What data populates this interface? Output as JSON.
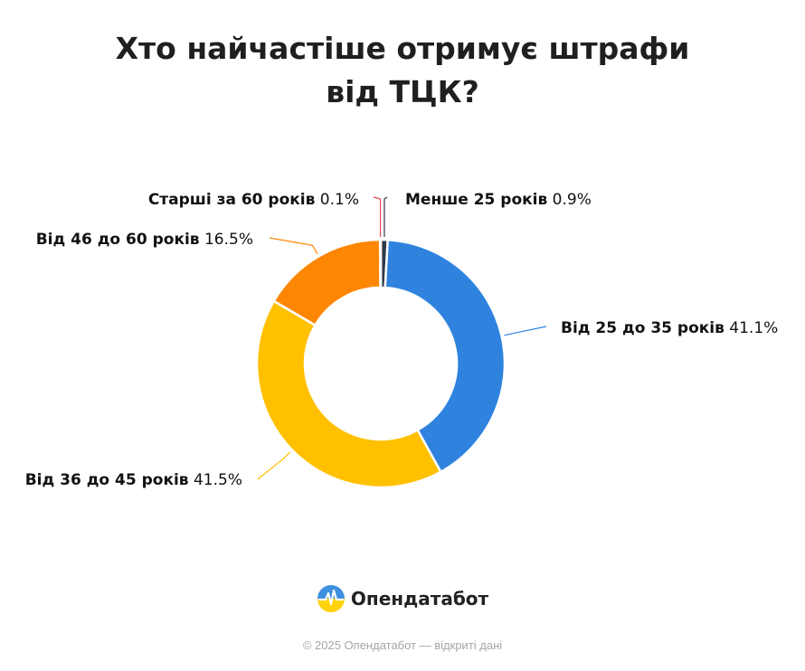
{
  "title": "Хто найчастіше отримує штрафи від ТЦК?",
  "chart_data": {
    "type": "pie",
    "variant": "donut",
    "title": "Хто найчастіше отримує штрафи від ТЦК?",
    "unit": "%",
    "slices": [
      {
        "label": "Менше 25 років",
        "value": 0.9,
        "value_text": "0.9%",
        "color": "#2f3b4c"
      },
      {
        "label": "Від 25 до 35 років",
        "value": 41.1,
        "value_text": "41.1%",
        "color": "#2f83de"
      },
      {
        "label": "Від 36 до 45 років",
        "value": 41.5,
        "value_text": "41.5%",
        "color": "#ffc000"
      },
      {
        "label": "Від 46 до 60 років",
        "value": 16.5,
        "value_text": "16.5%",
        "color": "#fd8603"
      },
      {
        "label": "Старші за 60 років",
        "value": 0.1,
        "value_text": "0.1%",
        "color": "#e54b55"
      }
    ]
  },
  "brand": {
    "name": "Опендатабот",
    "logo_icon": "opendatabot-logo-icon"
  },
  "footer": "© 2025 Опендатабот — відкриті дані"
}
